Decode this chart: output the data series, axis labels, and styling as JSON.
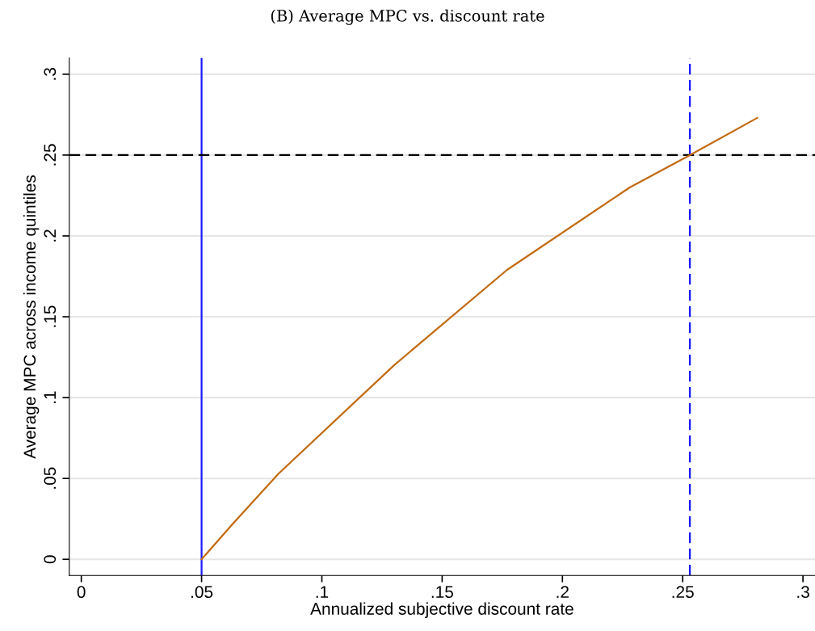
{
  "chart_data": {
    "type": "line",
    "title": "(B) Average MPC vs. discount rate",
    "xlabel": "Annualized subjective discount rate",
    "ylabel": "Average MPC across income quintiles",
    "series": [
      {
        "color": "#c26a12",
        "x": [
          0.05,
          0.063,
          0.082,
          0.13,
          0.177,
          0.228,
          0.253,
          0.281
        ],
        "values": [
          0.0,
          0.022,
          0.053,
          0.12,
          0.179,
          0.23,
          0.25,
          0.273
        ]
      }
    ],
    "xlim": [
      -0.005,
      0.305
    ],
    "ylim": [
      -0.01,
      0.31
    ],
    "xticks": [
      0,
      {
        "value": 0.05,
        "label": ".05"
      },
      {
        "value": 0.1,
        "label": ".1"
      },
      {
        "value": 0.15,
        "label": ".15"
      },
      {
        "value": 0.2,
        "label": ".2"
      },
      {
        "value": 0.25,
        "label": ".25"
      },
      {
        "value": 0.3,
        "label": ".3"
      }
    ],
    "yticks": [
      0,
      {
        "value": 0.05,
        "label": ".05"
      },
      {
        "value": 0.1,
        "label": ".1"
      },
      {
        "value": 0.15,
        "label": ".15"
      },
      {
        "value": 0.2,
        "label": ".2"
      },
      {
        "value": 0.25,
        "label": ".25"
      },
      {
        "value": 0.3,
        "label": ".3"
      }
    ],
    "grid": "y",
    "legend": false,
    "marker": "none",
    "line_style": "solid",
    "ref_lines": [
      {
        "axis": "x",
        "value": 0.05,
        "color": "#1a1aff",
        "line_style": "solid"
      },
      {
        "axis": "x",
        "value": 0.253,
        "color": "#1a1aff",
        "line_style": "dashed"
      },
      {
        "axis": "y",
        "value": 0.25,
        "color": "#000000",
        "line_style": "dashed"
      }
    ]
  }
}
